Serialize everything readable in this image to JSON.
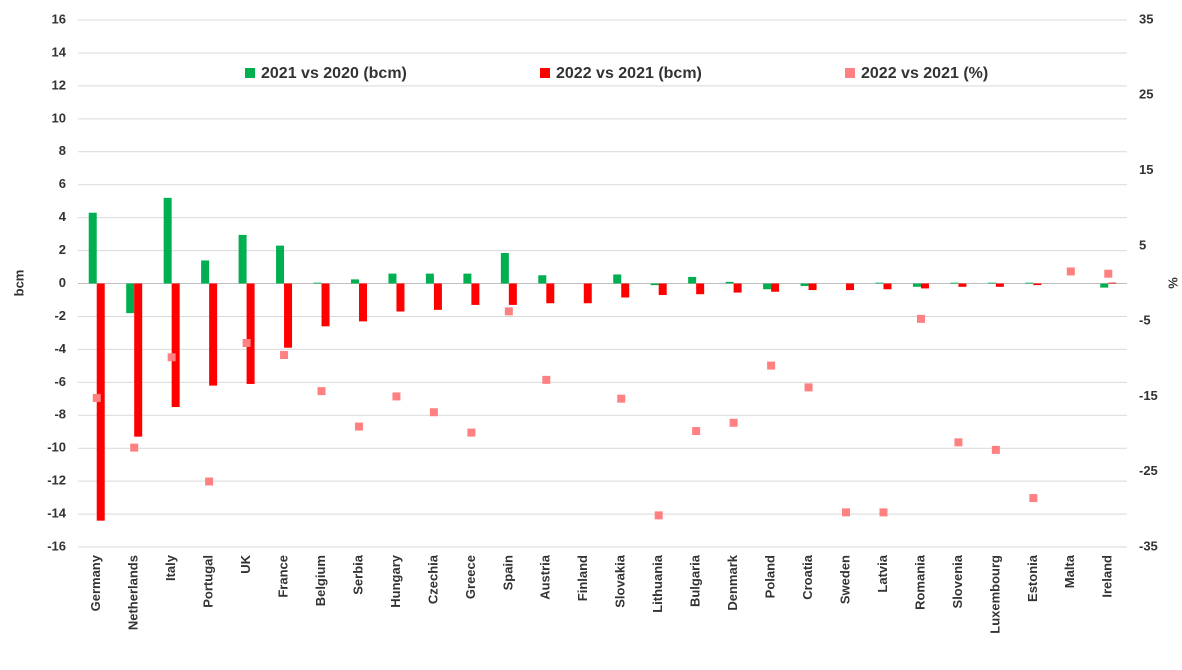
{
  "chart_data": {
    "type": "bar",
    "categories": [
      "Germany",
      "Netherlands",
      "Italy",
      "Portugal",
      "UK",
      "France",
      "Belgium",
      "Serbia",
      "Hungary",
      "Czechia",
      "Greece",
      "Spain",
      "Austria",
      "Finland",
      "Slovakia",
      "Lithuania",
      "Bulgaria",
      "Denmark",
      "Poland",
      "Croatia",
      "Sweden",
      "Latvia",
      "Romania",
      "Slovenia",
      "Luxembourg",
      "Estonia",
      "Malta",
      "Ireland"
    ],
    "series": [
      {
        "name": "2021 vs 2020 (bcm)",
        "color": "#00b050",
        "values": [
          4.3,
          -1.8,
          5.2,
          1.4,
          2.95,
          2.3,
          0.05,
          0.25,
          0.6,
          0.6,
          0.6,
          1.85,
          0.5,
          0,
          0.55,
          -0.1,
          0.4,
          0.1,
          -0.35,
          -0.15,
          0,
          0.05,
          -0.2,
          0.05,
          0.05,
          0.05,
          null,
          -0.25
        ]
      },
      {
        "name": "2022 vs 2021 (bcm)",
        "color": "#ff0000",
        "values": [
          -14.4,
          -9.3,
          -7.5,
          -6.2,
          -6.1,
          -3.9,
          -2.6,
          -2.3,
          -1.7,
          -1.6,
          -1.3,
          -1.3,
          -1.2,
          -1.2,
          -0.85,
          -0.7,
          -0.65,
          -0.55,
          -0.5,
          -0.4,
          -0.4,
          -0.35,
          -0.3,
          -0.2,
          -0.2,
          -0.1,
          null,
          0.05
        ]
      },
      {
        "name": "2022 vs 2021 (%)",
        "color": "#ff8080",
        "type": "scatter",
        "axis": "y2",
        "values": [
          -15.2,
          -21.8,
          -9.8,
          -26.3,
          -7.9,
          -9.5,
          -14.3,
          -19,
          -15,
          -17.1,
          -19.8,
          -3.7,
          -12.8,
          null,
          -15.3,
          -30.8,
          -19.6,
          -18.5,
          -10.9,
          -13.8,
          -30.4,
          -30.4,
          -4.7,
          -21.1,
          -22.1,
          -28.5,
          1.6,
          1.3
        ]
      }
    ],
    "ylabel": "bcm",
    "y2label": "%",
    "ylim": [
      -16,
      16
    ],
    "yticks": [
      -16,
      -14,
      -12,
      -10,
      -8,
      -6,
      -4,
      -2,
      0,
      2,
      4,
      6,
      8,
      10,
      12,
      14,
      16
    ],
    "y2lim": [
      -35,
      35
    ],
    "y2ticks": [
      -35,
      -25,
      -15,
      -5,
      5,
      15,
      25,
      35
    ],
    "grid": true,
    "legend": "top"
  }
}
